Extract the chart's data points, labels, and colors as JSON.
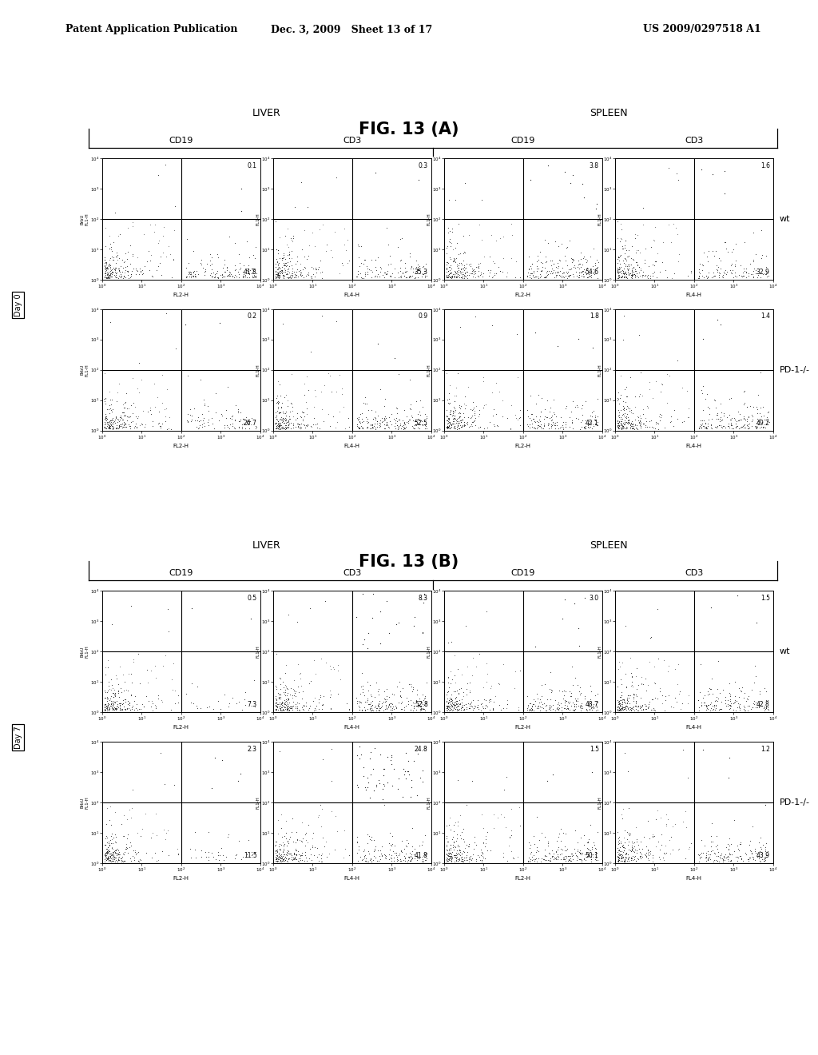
{
  "header_left": "Patent Application Publication",
  "header_mid": "Dec. 3, 2009   Sheet 13 of 17",
  "header_right": "US 2009/0297518 A1",
  "fig_A_title": "FIG. 13 (A)",
  "fig_B_title": "FIG. 13 (B)",
  "col_labels_A": [
    "CD19",
    "CD3",
    "CD19",
    "CD3"
  ],
  "col_labels_B": [
    "CD19",
    "CD3",
    "CD19",
    "CD3"
  ],
  "row_labels_A": [
    "wt",
    "PD-1-/-"
  ],
  "row_labels_B": [
    "wt",
    "PD-1-/-"
  ],
  "day_labels_A": "Day 0",
  "day_labels_B": "Day 7",
  "quadrant_values_A": {
    "wt": {
      "liver_cd19": {
        "TR": "0.1",
        "BR": "41.8"
      },
      "liver_cd3": {
        "TR": "0.3",
        "BR": "35.3"
      },
      "spleen_cd19": {
        "TR": "3.8",
        "BR": "54.6"
      },
      "spleen_cd3": {
        "TR": "1.6",
        "BR": "32.9"
      }
    },
    "pd1": {
      "liver_cd19": {
        "TR": "0.2",
        "BR": "26.7"
      },
      "liver_cd3": {
        "TR": "0.9",
        "BR": "52.5"
      },
      "spleen_cd19": {
        "TR": "1.8",
        "BR": "42.1"
      },
      "spleen_cd3": {
        "TR": "1.4",
        "BR": "49.2"
      }
    }
  },
  "quadrant_values_B": {
    "wt": {
      "liver_cd19": {
        "TR": "0.5",
        "BR": "7.3"
      },
      "liver_cd3": {
        "TR": "8.3",
        "BR": "52.8"
      },
      "spleen_cd19": {
        "TR": "3.0",
        "BR": "48.7"
      },
      "spleen_cd3": {
        "TR": "1.5",
        "BR": "42.8"
      }
    },
    "pd1": {
      "liver_cd19": {
        "TR": "2.3",
        "BR": "11.5"
      },
      "liver_cd3": {
        "TR": "24.8",
        "BR": "41.8"
      },
      "spleen_cd19": {
        "TR": "1.5",
        "BR": "50.1"
      },
      "spleen_cd3": {
        "TR": "1.2",
        "BR": "43.9"
      }
    }
  },
  "bg_color": "#ffffff",
  "dot_color": "#111111"
}
